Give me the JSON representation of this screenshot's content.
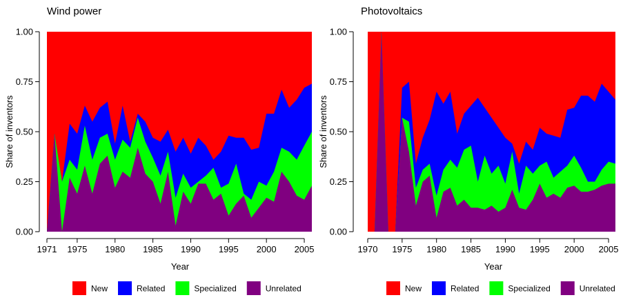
{
  "colors": {
    "New": "#ff0000",
    "Related": "#0000ff",
    "Specialized": "#00ff00",
    "Unrelated": "#800080"
  },
  "chart_data": [
    {
      "type": "area",
      "stacked": true,
      "title": "Wind power",
      "xlabel": "Year",
      "ylabel": "Share of inventors",
      "xlim": [
        1971,
        2006
      ],
      "ylim": [
        0,
        1
      ],
      "x_ticks": [
        1971,
        1975,
        1980,
        1985,
        1990,
        1995,
        2000,
        2005
      ],
      "y_ticks": [
        "0.00",
        "0.25",
        "0.50",
        "0.75",
        "1.00"
      ],
      "legend": {
        "position": "bottom",
        "entries": [
          "New",
          "Related",
          "Specialized",
          "Unrelated"
        ]
      },
      "x": [
        1971,
        1972,
        1973,
        1974,
        1975,
        1976,
        1977,
        1978,
        1979,
        1980,
        1981,
        1982,
        1983,
        1984,
        1985,
        1986,
        1987,
        1988,
        1989,
        1990,
        1991,
        1992,
        1993,
        1994,
        1995,
        1996,
        1997,
        1998,
        1999,
        2000,
        2001,
        2002,
        2003,
        2004,
        2005,
        2006
      ],
      "cumulative": {
        "Unrelated": [
          0,
          0.49,
          0.0,
          0.27,
          0.19,
          0.33,
          0.19,
          0.34,
          0.38,
          0.22,
          0.3,
          0.27,
          0.42,
          0.29,
          0.25,
          0.14,
          0.3,
          0.03,
          0.2,
          0.14,
          0.24,
          0.24,
          0.16,
          0.19,
          0.08,
          0.14,
          0.18,
          0.07,
          0.12,
          0.17,
          0.15,
          0.3,
          0.25,
          0.18,
          0.16,
          0.23
        ],
        "Specialized": [
          0,
          0.49,
          0.25,
          0.36,
          0.31,
          0.53,
          0.36,
          0.47,
          0.49,
          0.36,
          0.46,
          0.42,
          0.57,
          0.45,
          0.37,
          0.28,
          0.4,
          0.17,
          0.29,
          0.22,
          0.25,
          0.28,
          0.32,
          0.22,
          0.24,
          0.34,
          0.19,
          0.16,
          0.25,
          0.23,
          0.3,
          0.42,
          0.4,
          0.36,
          0.43,
          0.5
        ],
        "Related": [
          0,
          0.49,
          0.25,
          0.54,
          0.49,
          0.63,
          0.55,
          0.62,
          0.65,
          0.44,
          0.63,
          0.45,
          0.59,
          0.55,
          0.47,
          0.45,
          0.51,
          0.4,
          0.47,
          0.39,
          0.47,
          0.43,
          0.36,
          0.4,
          0.48,
          0.47,
          0.47,
          0.41,
          0.42,
          0.59,
          0.59,
          0.71,
          0.62,
          0.66,
          0.72,
          0.74
        ],
        "New": [
          1,
          1,
          1,
          1,
          1,
          1,
          1,
          1,
          1,
          1,
          1,
          1,
          1,
          1,
          1,
          1,
          1,
          1,
          1,
          1,
          1,
          1,
          1,
          1,
          1,
          1,
          1,
          1,
          1,
          1,
          1,
          1,
          1,
          1,
          1,
          1
        ]
      }
    },
    {
      "type": "area",
      "stacked": true,
      "title": "Photovoltaics",
      "xlabel": "Year",
      "ylabel": "Share of inventors",
      "xlim": [
        1969,
        2007
      ],
      "ylim": [
        0,
        1
      ],
      "x_ticks": [
        1970,
        1975,
        1980,
        1985,
        1990,
        1995,
        2000,
        2005
      ],
      "y_ticks": [
        "0.00",
        "0.25",
        "0.50",
        "0.75",
        "1.00"
      ],
      "legend": {
        "position": "bottom",
        "entries": [
          "New",
          "Related",
          "Specialized",
          "Unrelated"
        ]
      },
      "x": [
        1970,
        1971,
        1972,
        1973,
        1974,
        1975,
        1976,
        1977,
        1978,
        1979,
        1980,
        1981,
        1982,
        1983,
        1984,
        1985,
        1986,
        1987,
        1988,
        1989,
        1990,
        1991,
        1992,
        1993,
        1994,
        1995,
        1996,
        1997,
        1998,
        1999,
        2000,
        2001,
        2002,
        2003,
        2004,
        2005,
        2006
      ],
      "cumulative": {
        "Unrelated": [
          0,
          0,
          1.0,
          0,
          0,
          0.57,
          0.4,
          0.13,
          0.25,
          0.28,
          0.07,
          0.2,
          0.22,
          0.13,
          0.16,
          0.12,
          0.12,
          0.11,
          0.13,
          0.1,
          0.12,
          0.21,
          0.12,
          0.11,
          0.16,
          0.24,
          0.17,
          0.19,
          0.17,
          0.22,
          0.23,
          0.2,
          0.2,
          0.21,
          0.23,
          0.24,
          0.24
        ],
        "Specialized": [
          0,
          0,
          1.0,
          0,
          0,
          0.57,
          0.55,
          0.22,
          0.31,
          0.34,
          0.18,
          0.31,
          0.36,
          0.32,
          0.41,
          0.43,
          0.25,
          0.38,
          0.29,
          0.33,
          0.24,
          0.4,
          0.19,
          0.33,
          0.29,
          0.33,
          0.35,
          0.27,
          0.3,
          0.33,
          0.38,
          0.32,
          0.25,
          0.25,
          0.31,
          0.35,
          0.34
        ],
        "Related": [
          0,
          0,
          1.0,
          0,
          0,
          0.72,
          0.75,
          0.34,
          0.47,
          0.56,
          0.7,
          0.64,
          0.7,
          0.49,
          0.59,
          0.63,
          0.67,
          0.62,
          0.57,
          0.52,
          0.47,
          0.44,
          0.34,
          0.45,
          0.41,
          0.52,
          0.49,
          0.48,
          0.47,
          0.61,
          0.62,
          0.68,
          0.68,
          0.65,
          0.74,
          0.7,
          0.66
        ],
        "New": [
          1,
          1,
          1,
          1,
          1,
          1,
          1,
          1,
          1,
          1,
          1,
          1,
          1,
          1,
          1,
          1,
          1,
          1,
          1,
          1,
          1,
          1,
          1,
          1,
          1,
          1,
          1,
          1,
          1,
          1,
          1,
          1,
          1,
          1,
          1,
          1,
          1
        ]
      }
    }
  ]
}
